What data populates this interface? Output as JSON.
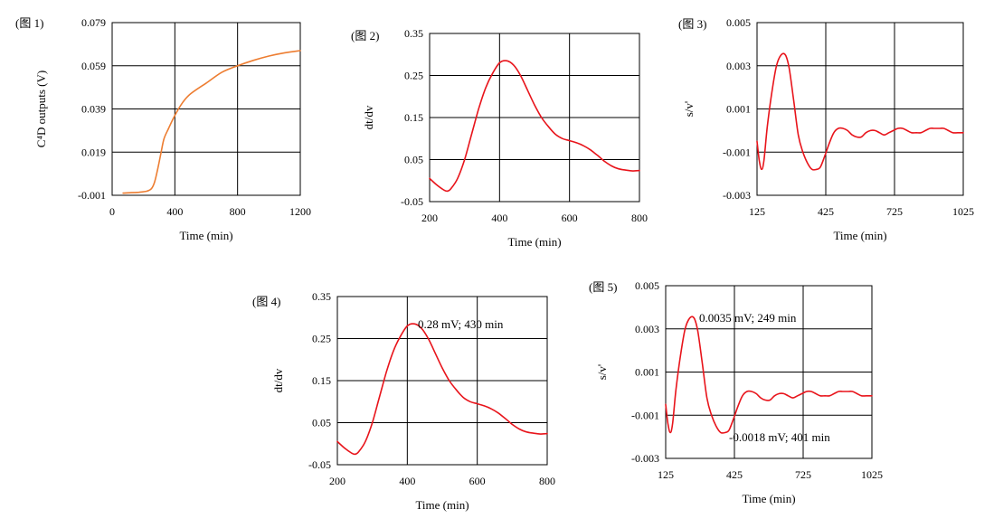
{
  "colors": {
    "orange": "#ED7D31",
    "red": "#E8141B"
  },
  "chart_data": [
    {
      "type": "line",
      "panel_label": "(图 1)",
      "xlabel": "Time (min)",
      "ylabel": "C⁴D outputs (V)",
      "xlim": [
        0,
        1200
      ],
      "ylim": [
        -0.001,
        0.079
      ],
      "x_ticks": [
        "0",
        "400",
        "800",
        "1200"
      ],
      "y_ticks": [
        "-0.001",
        "0.019",
        "0.039",
        "0.059",
        "0.079"
      ],
      "series": [
        {
          "name": "C4D output",
          "color": "orange",
          "x": [
            70,
            120,
            170,
            220,
            250,
            270,
            290,
            310,
            330,
            360,
            400,
            450,
            500,
            600,
            700,
            800,
            900,
            1000,
            1100,
            1200
          ],
          "y": [
            0.0,
            0.0002,
            0.0004,
            0.0009,
            0.002,
            0.005,
            0.011,
            0.018,
            0.025,
            0.03,
            0.036,
            0.042,
            0.046,
            0.051,
            0.056,
            0.059,
            0.0615,
            0.0635,
            0.065,
            0.066
          ]
        }
      ],
      "annotations": []
    },
    {
      "type": "line",
      "panel_label": "(图 2)",
      "xlabel": "Time (min)",
      "ylabel": "dt/dv",
      "xlim": [
        200,
        800
      ],
      "ylim": [
        -0.05,
        0.35
      ],
      "x_ticks": [
        "200",
        "400",
        "600",
        "800"
      ],
      "y_ticks": [
        "-0.05",
        "0.05",
        "0.15",
        "0.25",
        "0.35"
      ],
      "series": [
        {
          "name": "dt/dv",
          "color": "red",
          "x": [
            200,
            220,
            240,
            250,
            260,
            280,
            300,
            320,
            340,
            360,
            380,
            400,
            420,
            440,
            460,
            480,
            500,
            520,
            540,
            560,
            580,
            600,
            620,
            640,
            660,
            680,
            700,
            720,
            740,
            760,
            780,
            800
          ],
          "y": [
            0.005,
            -0.01,
            -0.022,
            -0.025,
            -0.02,
            0.005,
            0.05,
            0.11,
            0.17,
            0.22,
            0.255,
            0.28,
            0.285,
            0.275,
            0.25,
            0.215,
            0.18,
            0.15,
            0.128,
            0.11,
            0.1,
            0.095,
            0.09,
            0.083,
            0.073,
            0.06,
            0.046,
            0.035,
            0.028,
            0.025,
            0.023,
            0.024
          ]
        }
      ],
      "annotations": []
    },
    {
      "type": "line",
      "panel_label": "(图 3)",
      "xlabel": "Time (min)",
      "ylabel": "s/v'",
      "xlim": [
        125,
        1025
      ],
      "ylim": [
        -0.003,
        0.005
      ],
      "x_ticks": [
        "125",
        "425",
        "725",
        "1025"
      ],
      "y_ticks": [
        "-0.003",
        "-0.001",
        "0.001",
        "0.003",
        "0.005"
      ],
      "series": [
        {
          "name": "s/v'",
          "color": "red",
          "x": [
            125,
            135,
            145,
            155,
            170,
            190,
            210,
            230,
            249,
            265,
            285,
            305,
            325,
            345,
            365,
            385,
            401,
            420,
            440,
            460,
            480,
            500,
            520,
            540,
            560,
            580,
            600,
            620,
            640,
            660,
            680,
            700,
            720,
            740,
            760,
            780,
            800,
            820,
            840,
            860,
            880,
            900,
            920,
            940,
            960,
            980,
            1000,
            1025
          ],
          "y": [
            -0.0005,
            -0.0014,
            -0.0018,
            -0.0014,
            0.0002,
            0.0018,
            0.003,
            0.0035,
            0.0035,
            0.0029,
            0.0014,
            -0.0002,
            -0.001,
            -0.0015,
            -0.0018,
            -0.0018,
            -0.0017,
            -0.0012,
            -0.0006,
            -0.0001,
            0.0001,
            0.0001,
            0.0,
            -0.0002,
            -0.0003,
            -0.0003,
            -0.0001,
            0.0,
            0.0,
            -0.0001,
            -0.0002,
            -0.0001,
            0.0,
            0.0001,
            0.0001,
            0.0,
            -0.0001,
            -0.0001,
            -0.0001,
            0.0,
            0.0001,
            0.0001,
            0.0001,
            0.0001,
            0.0,
            -0.0001,
            -0.0001,
            -0.0001
          ]
        }
      ],
      "annotations": []
    },
    {
      "type": "line",
      "panel_label": "(图 4)",
      "xlabel": "Time (min)",
      "ylabel": "dt/dv",
      "xlim": [
        200,
        800
      ],
      "ylim": [
        -0.05,
        0.35
      ],
      "x_ticks": [
        "200",
        "400",
        "600",
        "800"
      ],
      "y_ticks": [
        "-0.05",
        "0.05",
        "0.15",
        "0.25",
        "0.35"
      ],
      "series": [
        {
          "name": "dt/dv",
          "color": "red",
          "x": [
            200,
            220,
            240,
            250,
            260,
            280,
            300,
            320,
            340,
            360,
            380,
            400,
            420,
            440,
            460,
            480,
            500,
            520,
            540,
            560,
            580,
            600,
            620,
            640,
            660,
            680,
            700,
            720,
            740,
            760,
            780,
            800
          ],
          "y": [
            0.005,
            -0.01,
            -0.022,
            -0.025,
            -0.02,
            0.005,
            0.05,
            0.11,
            0.17,
            0.22,
            0.255,
            0.28,
            0.285,
            0.275,
            0.25,
            0.215,
            0.18,
            0.15,
            0.128,
            0.11,
            0.1,
            0.095,
            0.09,
            0.083,
            0.073,
            0.06,
            0.046,
            0.035,
            0.028,
            0.025,
            0.023,
            0.024
          ]
        }
      ],
      "annotations": [
        {
          "text": "0.28 mV; 430 min",
          "x": 430,
          "y": 0.28
        }
      ]
    },
    {
      "type": "line",
      "panel_label": "(图 5)",
      "xlabel": "Time (min)",
      "ylabel": "s/v'",
      "xlim": [
        125,
        1025
      ],
      "ylim": [
        -0.003,
        0.005
      ],
      "x_ticks": [
        "125",
        "425",
        "725",
        "1025"
      ],
      "y_ticks": [
        "-0.003",
        "-0.001",
        "0.001",
        "0.003",
        "0.005"
      ],
      "series": [
        {
          "name": "s/v'",
          "color": "red",
          "x": [
            125,
            135,
            145,
            155,
            170,
            190,
            210,
            230,
            249,
            265,
            285,
            305,
            325,
            345,
            365,
            385,
            401,
            420,
            440,
            460,
            480,
            500,
            520,
            540,
            560,
            580,
            600,
            620,
            640,
            660,
            680,
            700,
            720,
            740,
            760,
            780,
            800,
            820,
            840,
            860,
            880,
            900,
            920,
            940,
            960,
            980,
            1000,
            1025
          ],
          "y": [
            -0.0005,
            -0.0014,
            -0.0018,
            -0.0014,
            0.0002,
            0.0018,
            0.003,
            0.0035,
            0.0035,
            0.0029,
            0.0014,
            -0.0002,
            -0.001,
            -0.0015,
            -0.0018,
            -0.0018,
            -0.0017,
            -0.0012,
            -0.0006,
            -0.0001,
            0.0001,
            0.0001,
            0.0,
            -0.0002,
            -0.0003,
            -0.0003,
            -0.0001,
            0.0,
            0.0,
            -0.0001,
            -0.0002,
            -0.0001,
            0.0,
            0.0001,
            0.0001,
            0.0,
            -0.0001,
            -0.0001,
            -0.0001,
            0.0,
            0.0001,
            0.0001,
            0.0001,
            0.0001,
            0.0,
            -0.0001,
            -0.0001,
            -0.0001
          ]
        }
      ],
      "annotations": [
        {
          "text": "0.0035 mV; 249 min",
          "x": 249,
          "y": 0.0035
        },
        {
          "text": "-0.0018 mV; 401 min",
          "x": 401,
          "y": -0.0018
        }
      ]
    }
  ]
}
